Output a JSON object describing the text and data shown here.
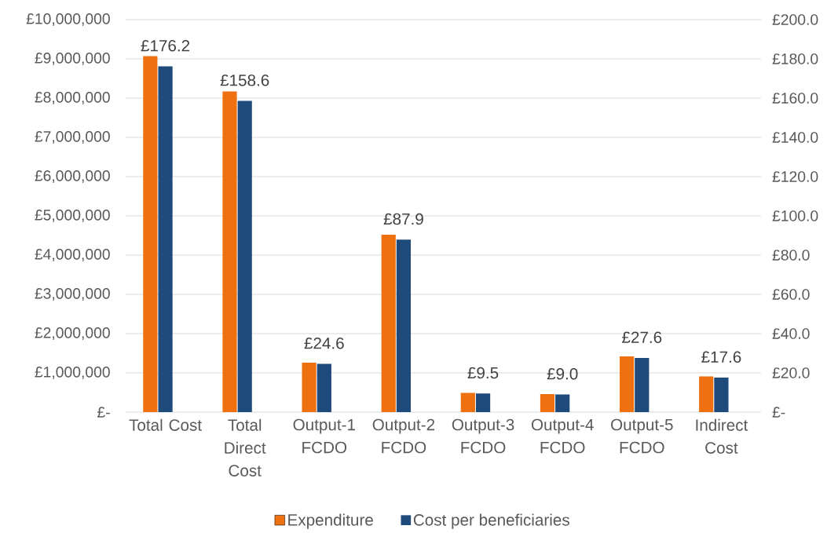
{
  "chart_data": {
    "type": "bar",
    "categories": [
      "Total Cost",
      "Total Direct Cost",
      "Output-1 FCDO",
      "Output-2 FCDO",
      "Output-3 FCDO",
      "Output-4 FCDO",
      "Output-5 FCDO",
      "Indirect Cost"
    ],
    "series": [
      {
        "name": "Expenditure",
        "color": "#EE700E",
        "values": [
          9070000,
          8170000,
          1260000,
          4520000,
          490000,
          460000,
          1420000,
          910000
        ]
      },
      {
        "name": "Cost per beneficiaries",
        "color": "#1F4A7C",
        "axis": "y2",
        "values": [
          176.2,
          158.6,
          24.6,
          87.9,
          9.5,
          9.0,
          27.6,
          17.6
        ],
        "value_labels": [
          "£176.2",
          "£158.6",
          "£24.6",
          "£87.9",
          "£9.5",
          "£9.0",
          "£27.6",
          "£17.6"
        ]
      }
    ],
    "ylim": [
      0,
      10000000
    ],
    "yticks": [
      {
        "value": 0,
        "label": "£-"
      },
      {
        "value": 1000000,
        "label": "£1,000,000"
      },
      {
        "value": 2000000,
        "label": "£2,000,000"
      },
      {
        "value": 3000000,
        "label": "£3,000,000"
      },
      {
        "value": 4000000,
        "label": "£4,000,000"
      },
      {
        "value": 5000000,
        "label": "£5,000,000"
      },
      {
        "value": 6000000,
        "label": "£6,000,000"
      },
      {
        "value": 7000000,
        "label": "£7,000,000"
      },
      {
        "value": 8000000,
        "label": "£8,000,000"
      },
      {
        "value": 9000000,
        "label": "£9,000,000"
      },
      {
        "value": 10000000,
        "label": "£10,000,000"
      }
    ],
    "y2lim": [
      0,
      200
    ],
    "y2ticks": [
      {
        "value": 0,
        "label": "£-"
      },
      {
        "value": 20,
        "label": "£20.0"
      },
      {
        "value": 40,
        "label": "£40.0"
      },
      {
        "value": 60,
        "label": "£60.0"
      },
      {
        "value": 80,
        "label": "£80.0"
      },
      {
        "value": 100,
        "label": "£100.0"
      },
      {
        "value": 120,
        "label": "£120.0"
      },
      {
        "value": 140,
        "label": "£140.0"
      },
      {
        "value": 160,
        "label": "£160.0"
      },
      {
        "value": 180,
        "label": "£180.0"
      },
      {
        "value": 200,
        "label": "£200.0"
      }
    ],
    "grid": "y",
    "legend": "bottom"
  }
}
